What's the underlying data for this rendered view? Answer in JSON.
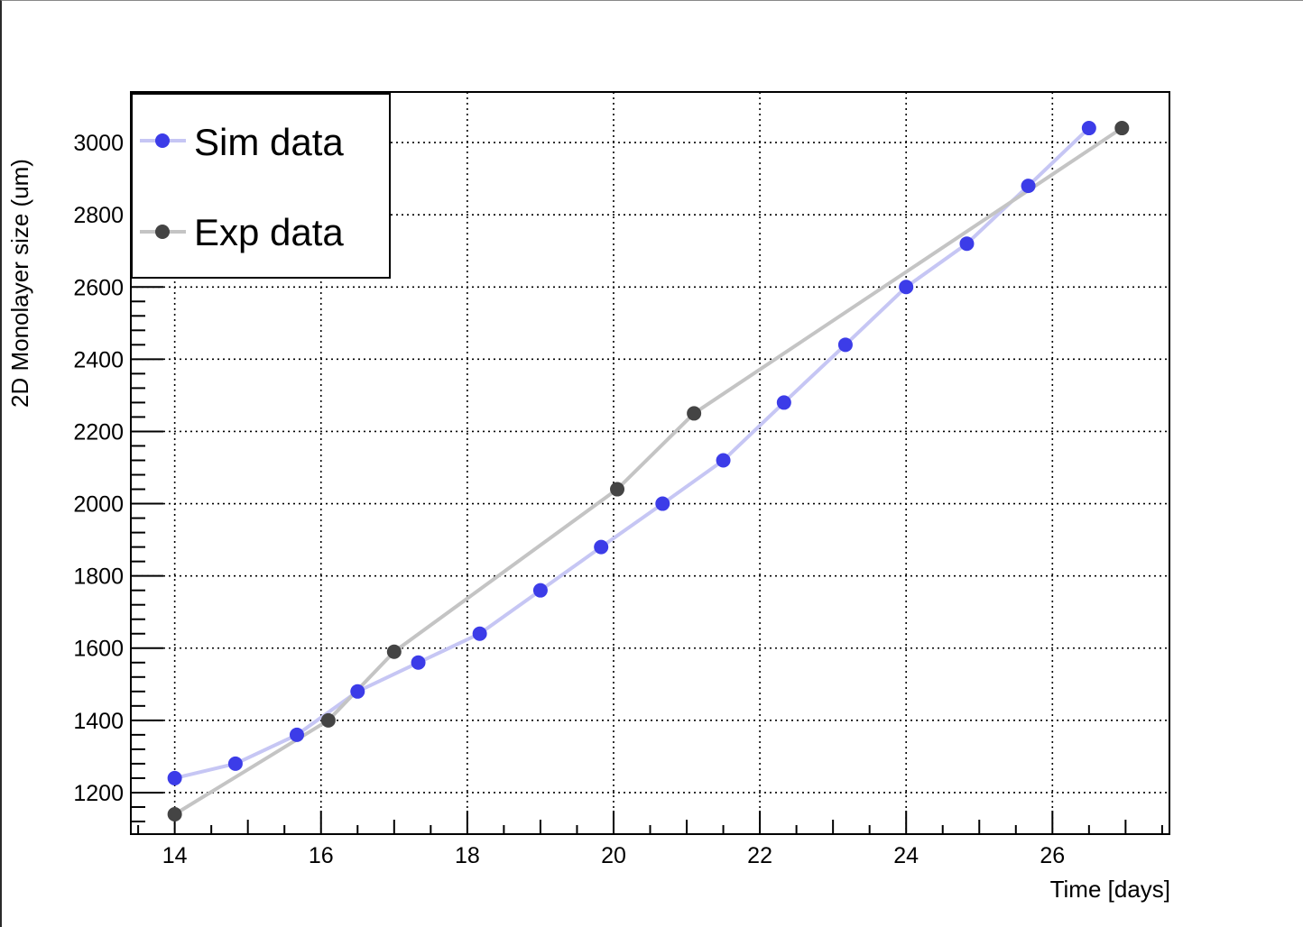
{
  "chart_data": {
    "type": "line",
    "xlabel": "Time [days]",
    "ylabel": "2D Monolayer size (um)",
    "xlim": [
      13.4,
      27.6
    ],
    "ylim": [
      1085,
      3140
    ],
    "grid": true,
    "legend_position": "top-left",
    "x_ticks": [
      14,
      16,
      18,
      20,
      22,
      24,
      26
    ],
    "y_ticks": [
      1200,
      1400,
      1600,
      1800,
      2000,
      2200,
      2400,
      2600,
      2800,
      3000
    ],
    "series": [
      {
        "name": "Sim data",
        "line_color": "#c6c6f4",
        "marker_color": "#3c3ce8",
        "points": [
          [
            14.0,
            1240
          ],
          [
            14.83,
            1280
          ],
          [
            15.67,
            1360
          ],
          [
            16.5,
            1480
          ],
          [
            17.33,
            1560
          ],
          [
            18.17,
            1640
          ],
          [
            19.0,
            1760
          ],
          [
            19.83,
            1880
          ],
          [
            20.67,
            2000
          ],
          [
            21.5,
            2120
          ],
          [
            22.33,
            2280
          ],
          [
            23.17,
            2440
          ],
          [
            24.0,
            2600
          ],
          [
            24.83,
            2720
          ],
          [
            25.67,
            2880
          ],
          [
            26.5,
            3040
          ]
        ]
      },
      {
        "name": "Exp data",
        "line_color": "#c4c4c4",
        "marker_color": "#444444",
        "points": [
          [
            14.0,
            1140
          ],
          [
            16.1,
            1400
          ],
          [
            17.0,
            1590
          ],
          [
            20.05,
            2040
          ],
          [
            21.1,
            2250
          ],
          [
            26.95,
            3040
          ]
        ]
      }
    ]
  }
}
